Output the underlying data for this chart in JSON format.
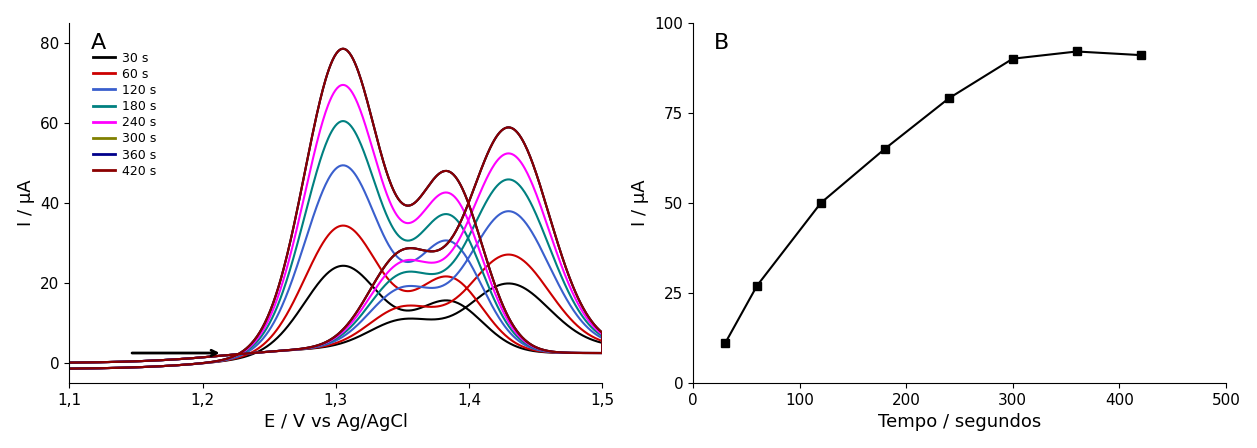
{
  "panel_A_label": "A",
  "panel_B_label": "B",
  "xlabel_A": "E / V vs Ag/AgCl",
  "ylabel_A": "I / μA",
  "xlabel_B": "Tempo / segundos",
  "ylabel_B": "I / μA",
  "xlim_A": [
    1.1,
    1.5
  ],
  "ylim_A": [
    -5,
    85
  ],
  "xlim_B": [
    0,
    500
  ],
  "ylim_B": [
    0,
    100
  ],
  "xticks_A": [
    1.1,
    1.2,
    1.3,
    1.4,
    1.5
  ],
  "yticks_A": [
    0,
    20,
    40,
    60,
    80
  ],
  "xticks_B": [
    0,
    100,
    200,
    300,
    400,
    500
  ],
  "yticks_B": [
    0,
    25,
    50,
    75,
    100
  ],
  "legend_labels": [
    "30 s",
    "60 s",
    "120 s",
    "180 s",
    "240 s",
    "300 s",
    "360 s",
    "420 s"
  ],
  "legend_colors": [
    "#000000",
    "#cc0000",
    "#3a5fcd",
    "#008080",
    "#ff00ff",
    "#808000",
    "#00008b",
    "#8b0000"
  ],
  "peak_currents": [
    22,
    32,
    47,
    58,
    67,
    76,
    76,
    76
  ],
  "scatter_x": [
    30,
    60,
    120,
    180,
    240,
    300,
    360,
    420
  ],
  "scatter_y": [
    11,
    27,
    50,
    65,
    79,
    90,
    92,
    91
  ],
  "tick_label_size": 11,
  "axis_label_size": 13,
  "panel_label_size": 16
}
